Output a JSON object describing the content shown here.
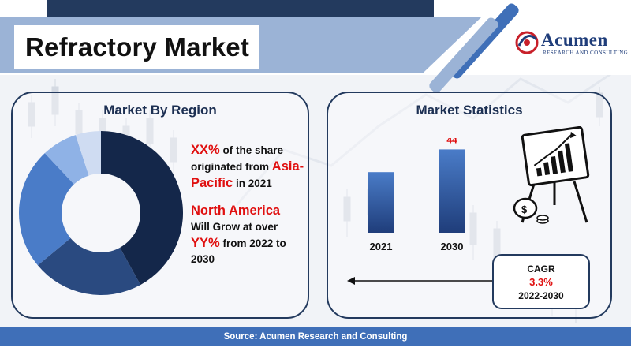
{
  "header": {
    "title": "Refractory Market",
    "logo_name": "Acumen",
    "logo_sub": "RESEARCH AND CONSULTING"
  },
  "colors": {
    "navy": "#233a5e",
    "accent_blue": "#3f6fb8",
    "highlight_red": "#e01010"
  },
  "region_panel": {
    "title": "Market By Region",
    "stat1_value": "XX%",
    "stat1_text": "of the share originated from",
    "stat1_region": "Asia-Pacific",
    "stat1_suffix": "in 2021",
    "stat2_region": "North America",
    "stat2_text": "Will Grow at over",
    "stat2_value": "YY%",
    "stat2_suffix": "from 2022 to 2030"
  },
  "stats_panel": {
    "title": "Market Statistics",
    "cagr_label": "CAGR",
    "cagr_value": "3.3%",
    "cagr_years": "2022-2030"
  },
  "footer": {
    "source": "Source: Acumen Research and Consulting"
  },
  "chart_data": [
    {
      "type": "pie",
      "variant": "donut",
      "slices": [
        {
          "value": 42,
          "color": "#14274a"
        },
        {
          "value": 22,
          "color": "#2a4a80"
        },
        {
          "value": 24,
          "color": "#4a7cc8"
        },
        {
          "value": 7,
          "color": "#8fb2e6"
        },
        {
          "value": 5,
          "color": "#cfdcf2"
        }
      ]
    },
    {
      "type": "bar",
      "categories": [
        "2021",
        "2030"
      ],
      "values": [
        32,
        44
      ],
      "data_labels": [
        "",
        "44"
      ],
      "ylim": [
        0,
        50
      ]
    }
  ]
}
